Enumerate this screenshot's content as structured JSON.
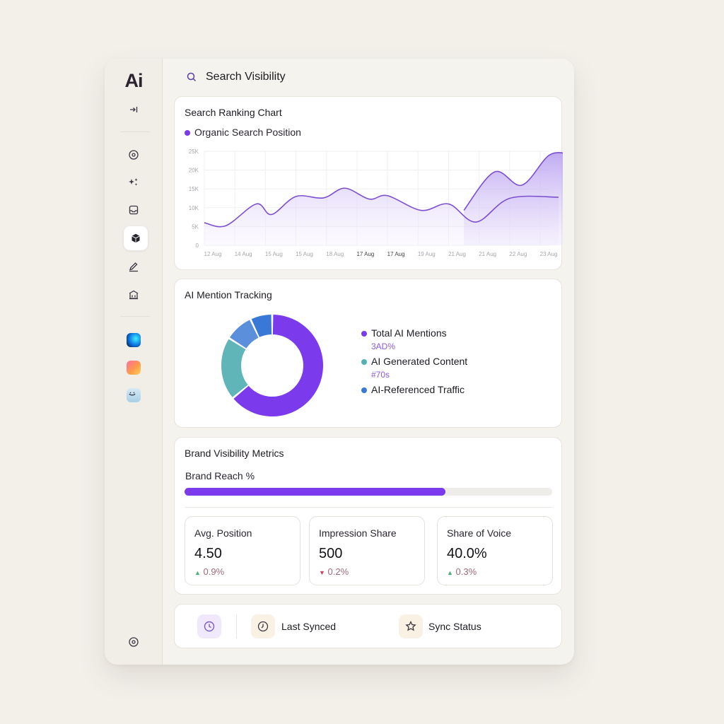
{
  "logo": "Ai",
  "header": {
    "title": "Search Visibility"
  },
  "sidebar": {
    "icons": [
      "collapse-arrow-icon",
      "compass-icon",
      "sparkles-icon",
      "inbox-icon",
      "cube-icon",
      "pen-icon",
      "bank-icon"
    ],
    "apps": [
      "app-tile-blue",
      "app-tile-orange",
      "app-tile-face"
    ],
    "bottom_icon": "settings-circle-icon"
  },
  "ranking": {
    "title": "Search Ranking Chart",
    "legend": "Organic Search Position",
    "colors": {
      "line": "#7c4fd0",
      "fill": "#b9a3f1"
    }
  },
  "chart_data": {
    "type": "area",
    "title": "Search Ranking Chart",
    "x": [
      "12 Aug",
      "14 Aug",
      "15 Aug",
      "15 Aug",
      "18 Aug",
      "17 Aug",
      "17 Aug",
      "19 Aug",
      "21 Aug",
      "21 Aug",
      "22 Aug",
      "23 Aug"
    ],
    "yticks": [
      "0",
      "5K",
      "10K",
      "15K",
      "20K",
      "25K"
    ],
    "ylim": [
      0,
      25000
    ],
    "series": [
      {
        "name": "Organic Search Position",
        "values": [
          6000,
          5200,
          11000,
          8200,
          13000,
          12600,
          15200,
          12300,
          13200,
          9300,
          11000,
          6200,
          12500,
          12800
        ],
        "x": [
          0,
          0.7,
          1.7,
          2.2,
          3.0,
          3.9,
          4.6,
          5.4,
          6.0,
          7.1,
          8.0,
          8.9,
          10.0,
          11.6
        ]
      },
      {
        "values": [
          9300,
          19500,
          16000,
          24000,
          24200
        ],
        "x": [
          8.5,
          9.5,
          10.4,
          11.3,
          12.0
        ]
      }
    ],
    "grid": true
  },
  "mentions": {
    "title": "AI Mention Tracking",
    "legend": [
      {
        "label": "Total AI Mentions",
        "sub": "3AD%",
        "color": "#7c3aed"
      },
      {
        "label": "AI Generated Content",
        "sub": "#70s",
        "color": "#4fb3b6"
      },
      {
        "label": "AI-Referenced Traffic",
        "sub": "",
        "color": "#3a78d8"
      }
    ],
    "donut": [
      {
        "value": 64,
        "color": "#7c3aed"
      },
      {
        "value": 20,
        "color": "#5fb5b7"
      },
      {
        "value": 9,
        "color": "#5b8fdc"
      },
      {
        "value": 7,
        "color": "#3a78d8"
      }
    ]
  },
  "brand": {
    "title": "Brand Visibility Metrics",
    "reach_label": "Brand Reach %",
    "reach": 0.71,
    "metrics": [
      {
        "label": "Avg. Position",
        "value": "4.50",
        "delta": "0.9%",
        "direction": "up"
      },
      {
        "label": "Impression Share",
        "value": "500",
        "delta": "0.2%",
        "direction": "down"
      },
      {
        "label": "Share of Voice",
        "value": "40.0%",
        "delta": "0.3%",
        "direction": "up"
      }
    ]
  },
  "footer": {
    "last_synced": "Last Synced",
    "sync_status": "Sync Status"
  }
}
